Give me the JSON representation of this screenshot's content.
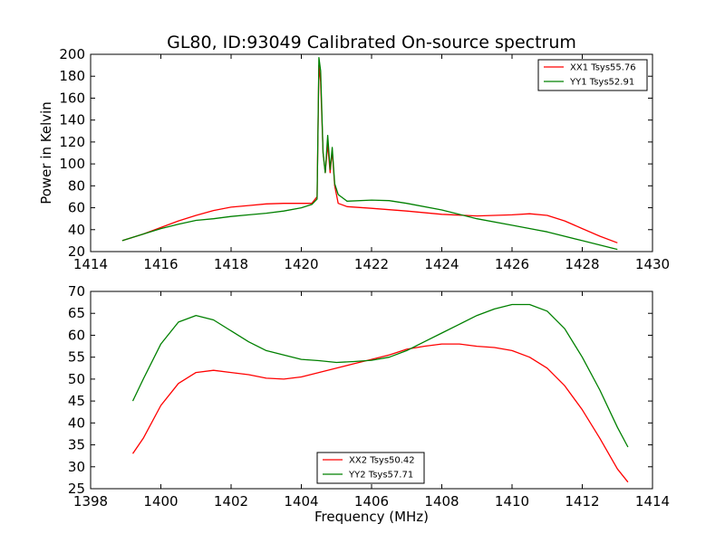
{
  "figure": {
    "title": "GL80, ID:93049 Calibrated On-source spectrum",
    "xlabel": "Frequency (MHz)",
    "colors": {
      "red": "#ff0000",
      "green": "#008000",
      "axes": "#000000",
      "background": "#ffffff"
    }
  },
  "chart_data": [
    {
      "type": "line",
      "ylabel": "Power in Kelvin",
      "xlim": [
        1414,
        1430
      ],
      "ylim": [
        20,
        200
      ],
      "xticks": [
        1414,
        1416,
        1418,
        1420,
        1422,
        1424,
        1426,
        1428,
        1430
      ],
      "yticks": [
        20,
        40,
        60,
        80,
        100,
        120,
        140,
        160,
        180,
        200
      ],
      "legend_position": "top-right",
      "grid": false,
      "series": [
        {
          "name": "XX1 Tsys55.76",
          "color": "#ff0000",
          "points": [
            [
              1414.9,
              30
            ],
            [
              1415.5,
              36
            ],
            [
              1416,
              42
            ],
            [
              1416.5,
              48
            ],
            [
              1417,
              53
            ],
            [
              1417.5,
              57.5
            ],
            [
              1418,
              60.5
            ],
            [
              1418.5,
              62
            ],
            [
              1419,
              63.5
            ],
            [
              1419.5,
              64
            ],
            [
              1420,
              64
            ],
            [
              1420.3,
              64
            ],
            [
              1420.45,
              70
            ],
            [
              1420.5,
              190
            ],
            [
              1420.55,
              175
            ],
            [
              1420.62,
              110
            ],
            [
              1420.68,
              92
            ],
            [
              1420.75,
              118
            ],
            [
              1420.82,
              92
            ],
            [
              1420.88,
              112
            ],
            [
              1420.95,
              80
            ],
            [
              1421.05,
              64
            ],
            [
              1421.3,
              61
            ],
            [
              1422,
              59.5
            ],
            [
              1423,
              57
            ],
            [
              1424,
              54
            ],
            [
              1425,
              52.5
            ],
            [
              1425.5,
              53
            ],
            [
              1426,
              53.5
            ],
            [
              1426.5,
              54.5
            ],
            [
              1427,
              53
            ],
            [
              1427.5,
              48
            ],
            [
              1428,
              41
            ],
            [
              1428.5,
              34
            ],
            [
              1429,
              28
            ]
          ]
        },
        {
          "name": "YY1 Tsys52.91",
          "color": "#008000",
          "points": [
            [
              1414.9,
              30
            ],
            [
              1415.5,
              36
            ],
            [
              1416,
              41
            ],
            [
              1416.5,
              45
            ],
            [
              1417,
              48.5
            ],
            [
              1417.5,
              50
            ],
            [
              1418,
              52
            ],
            [
              1418.5,
              53.5
            ],
            [
              1419,
              55
            ],
            [
              1419.5,
              57
            ],
            [
              1420,
              60
            ],
            [
              1420.3,
              63
            ],
            [
              1420.45,
              68
            ],
            [
              1420.5,
              197
            ],
            [
              1420.55,
              185
            ],
            [
              1420.62,
              110
            ],
            [
              1420.68,
              92
            ],
            [
              1420.75,
              126
            ],
            [
              1420.82,
              95
            ],
            [
              1420.88,
              115
            ],
            [
              1420.95,
              82
            ],
            [
              1421.05,
              72
            ],
            [
              1421.3,
              66
            ],
            [
              1422,
              67
            ],
            [
              1422.5,
              66.5
            ],
            [
              1423,
              64
            ],
            [
              1424,
              58
            ],
            [
              1425,
              50
            ],
            [
              1426,
              44
            ],
            [
              1427,
              38
            ],
            [
              1428,
              30
            ],
            [
              1428.5,
              26
            ],
            [
              1429,
              22
            ]
          ]
        }
      ]
    },
    {
      "type": "line",
      "ylabel": "",
      "xlim": [
        1398,
        1414
      ],
      "ylim": [
        25,
        70
      ],
      "xticks": [
        1398,
        1400,
        1402,
        1404,
        1406,
        1408,
        1410,
        1412,
        1414
      ],
      "yticks": [
        25,
        30,
        35,
        40,
        45,
        50,
        55,
        60,
        65,
        70
      ],
      "legend_position": "bottom-center",
      "grid": false,
      "series": [
        {
          "name": "XX2 Tsys50.42",
          "color": "#ff0000",
          "points": [
            [
              1399.2,
              33
            ],
            [
              1399.5,
              36.5
            ],
            [
              1400,
              44
            ],
            [
              1400.5,
              49
            ],
            [
              1401,
              51.5
            ],
            [
              1401.5,
              52
            ],
            [
              1402,
              51.5
            ],
            [
              1402.5,
              51
            ],
            [
              1403,
              50.2
            ],
            [
              1403.5,
              50
            ],
            [
              1404,
              50.5
            ],
            [
              1404.5,
              51.5
            ],
            [
              1405,
              52.5
            ],
            [
              1405.5,
              53.5
            ],
            [
              1406,
              54.5
            ],
            [
              1406.5,
              55.5
            ],
            [
              1407,
              56.8
            ],
            [
              1407.5,
              57.5
            ],
            [
              1408,
              58
            ],
            [
              1408.5,
              58
            ],
            [
              1409,
              57.5
            ],
            [
              1409.5,
              57.2
            ],
            [
              1410,
              56.5
            ],
            [
              1410.5,
              55
            ],
            [
              1411,
              52.5
            ],
            [
              1411.5,
              48.5
            ],
            [
              1412,
              43
            ],
            [
              1412.5,
              36.5
            ],
            [
              1413,
              29.5
            ],
            [
              1413.3,
              26.5
            ]
          ]
        },
        {
          "name": "YY2 Tsys57.71",
          "color": "#008000",
          "points": [
            [
              1399.2,
              45
            ],
            [
              1399.5,
              50
            ],
            [
              1400,
              58
            ],
            [
              1400.5,
              63
            ],
            [
              1401,
              64.5
            ],
            [
              1401.5,
              63.5
            ],
            [
              1402,
              61
            ],
            [
              1402.5,
              58.5
            ],
            [
              1403,
              56.5
            ],
            [
              1403.5,
              55.5
            ],
            [
              1404,
              54.5
            ],
            [
              1404.5,
              54.2
            ],
            [
              1405,
              53.8
            ],
            [
              1405.5,
              54
            ],
            [
              1406,
              54.3
            ],
            [
              1406.5,
              55
            ],
            [
              1407,
              56.5
            ],
            [
              1407.5,
              58.5
            ],
            [
              1408,
              60.5
            ],
            [
              1408.5,
              62.5
            ],
            [
              1409,
              64.5
            ],
            [
              1409.5,
              66
            ],
            [
              1410,
              67
            ],
            [
              1410.5,
              67
            ],
            [
              1411,
              65.5
            ],
            [
              1411.5,
              61.5
            ],
            [
              1412,
              55
            ],
            [
              1412.5,
              47.5
            ],
            [
              1413,
              39
            ],
            [
              1413.3,
              34.5
            ]
          ]
        }
      ]
    }
  ]
}
